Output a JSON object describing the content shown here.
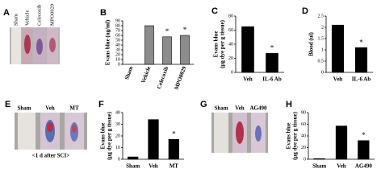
{
  "panels": [
    "A",
    "B",
    "C",
    "D",
    "E",
    "F",
    "G",
    "H"
  ],
  "photos": [
    {
      "labels": [
        "Sham",
        "Vehicle",
        "Celecoxib",
        "MPO0029"
      ]
    },
    {
      "labels": [
        "Sham",
        "Veh",
        "MT"
      ],
      "caption": "<1 d after SCI>"
    },
    {
      "labels": [
        "Sham",
        "Veh",
        "AG490"
      ]
    }
  ],
  "chart_data": [
    {
      "type": "bar",
      "y_label": "Evans blue (ug/ml)",
      "categories": [
        "Sham",
        "Vehicle",
        "Celecoxib",
        "MPO0029"
      ],
      "values": [
        0,
        80,
        57,
        60
      ],
      "significance": [
        null,
        null,
        "*",
        "*"
      ],
      "color": "#8c8c8c",
      "ylim": [
        0,
        90
      ],
      "yticks": [
        0,
        10,
        20,
        30,
        40,
        50,
        60,
        70,
        80,
        90
      ]
    },
    {
      "type": "bar",
      "y_label": "Evans blue",
      "y_label_2": "(μg dye per g tissue)",
      "categories": [
        "Veh",
        "IL-6 Ab"
      ],
      "values": [
        65,
        27
      ],
      "significance": [
        null,
        "*"
      ],
      "color": "#000000",
      "ylim": [
        0,
        80
      ],
      "yticks": [
        0,
        20,
        40,
        60,
        80
      ]
    },
    {
      "type": "bar",
      "y_label": "Blood (ul)",
      "categories": [
        "Veh",
        "IL-6 Ab"
      ],
      "values": [
        2.1,
        1.1
      ],
      "significance": [
        null,
        "*"
      ],
      "color": "#000000",
      "ylim": [
        0,
        2.5
      ],
      "yticks": [
        0,
        0.5,
        1,
        1.5,
        2,
        2.5
      ]
    },
    {
      "type": "bar",
      "y_label": "Evans blue",
      "y_label_2": "(μg dye per g tissue)",
      "categories": [
        "Sham",
        "Veh",
        "MT"
      ],
      "values": [
        2,
        34,
        17
      ],
      "significance": [
        null,
        null,
        "*"
      ],
      "color": "#000000",
      "ylim": [
        0,
        40
      ],
      "yticks": [
        0,
        10,
        20,
        30,
        40
      ]
    },
    {
      "type": "bar",
      "y_label": "Evans blue",
      "y_label_2": "(μg dye per g tissue)",
      "categories": [
        "Sham",
        "Veh",
        "AG490"
      ],
      "values": [
        1,
        57,
        32
      ],
      "significance": [
        null,
        null,
        "*"
      ],
      "color": "#000000",
      "ylim": [
        0,
        80
      ],
      "yticks": [
        0,
        20,
        40,
        60,
        80
      ]
    }
  ]
}
